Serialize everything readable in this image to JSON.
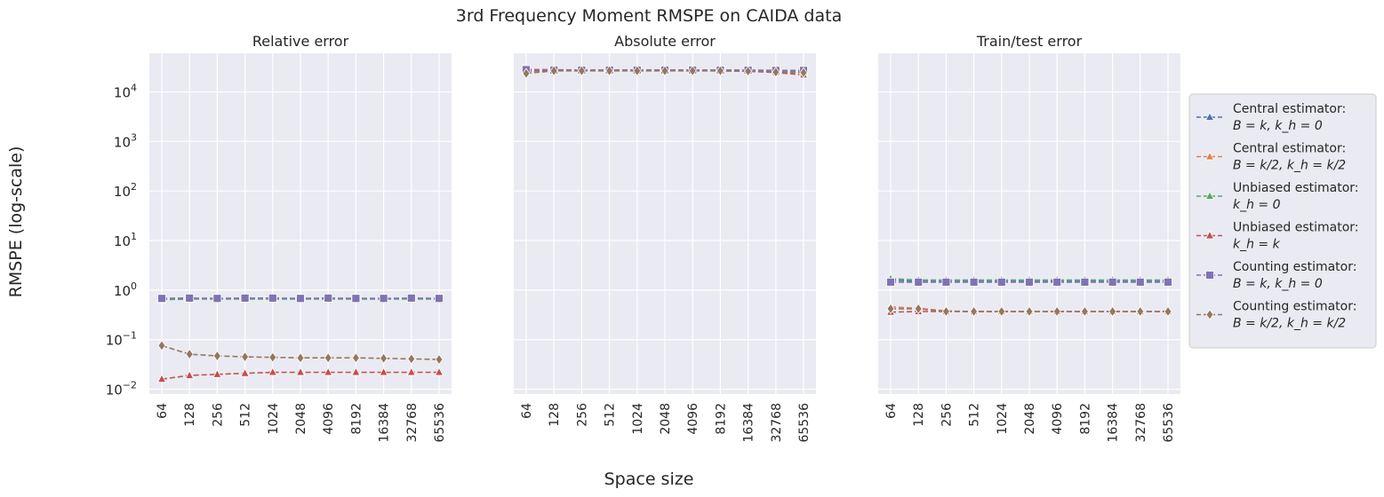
{
  "figure": {
    "suptitle": "3rd Frequency Moment RMSPE on CAIDA data",
    "ylabel": "RMSPE (log-scale)",
    "xlabel": "Space size"
  },
  "colors": {
    "background": "#eaeaf2",
    "grid": "#ffffff",
    "series": [
      "#4c72b0",
      "#dd8452",
      "#55a868",
      "#c44e52",
      "#8172b3",
      "#937860"
    ]
  },
  "legend": {
    "placement": "right",
    "entries": [
      {
        "line1": "Central estimator:",
        "line2": "B = k, k_h = 0",
        "marker": "triangle"
      },
      {
        "line1": "Central estimator:",
        "line2": "B = k/2, k_h = k/2",
        "marker": "triangle"
      },
      {
        "line1": "Unbiased estimator:",
        "line2": "k_h = 0",
        "marker": "triangle"
      },
      {
        "line1": "Unbiased estimator:",
        "line2": "k_h = k",
        "marker": "triangle"
      },
      {
        "line1": "Counting estimator:",
        "line2": "B = k, k_h = 0",
        "marker": "square"
      },
      {
        "line1": "Counting estimator:",
        "line2": "B = k/2, k_h = k/2",
        "marker": "diamond"
      }
    ]
  },
  "chart_data": [
    {
      "type": "line",
      "title": "Relative error",
      "scale": "log",
      "ylim": [
        0.008,
        60000
      ],
      "yticks": [
        "10^4",
        "10^3",
        "10^2",
        "10^1",
        "10^0",
        "10^-1",
        "10^-2"
      ],
      "categories": [
        "64",
        "128",
        "256",
        "512",
        "1024",
        "2048",
        "4096",
        "8192",
        "16384",
        "32768",
        "65536"
      ],
      "series": [
        {
          "values": [
            0.68,
            0.68,
            0.67,
            0.68,
            0.68,
            0.67,
            0.68,
            0.67,
            0.67,
            0.68,
            0.67
          ]
        },
        {
          "values": [
            0.66,
            0.67,
            0.67,
            0.67,
            0.67,
            0.67,
            0.67,
            0.67,
            0.67,
            0.67,
            0.67
          ]
        },
        {
          "values": [
            0.64,
            0.66,
            0.66,
            0.66,
            0.66,
            0.66,
            0.66,
            0.66,
            0.66,
            0.66,
            0.66
          ]
        },
        {
          "values": [
            0.016,
            0.019,
            0.02,
            0.021,
            0.022,
            0.022,
            0.022,
            0.022,
            0.022,
            0.022,
            0.022
          ]
        },
        {
          "values": [
            0.68,
            0.69,
            0.68,
            0.69,
            0.69,
            0.68,
            0.69,
            0.68,
            0.68,
            0.69,
            0.68
          ]
        },
        {
          "values": [
            0.076,
            0.051,
            0.047,
            0.045,
            0.044,
            0.043,
            0.043,
            0.043,
            0.042,
            0.041,
            0.04
          ]
        }
      ]
    },
    {
      "type": "line",
      "title": "Absolute error",
      "scale": "log",
      "ylim": [
        0.008,
        60000
      ],
      "categories": [
        "64",
        "128",
        "256",
        "512",
        "1024",
        "2048",
        "4096",
        "8192",
        "16384",
        "32768",
        "65536"
      ],
      "series": [
        {
          "values": [
            27500,
            27000,
            27000,
            27000,
            27000,
            27000,
            27000,
            27000,
            27000,
            26500,
            26000
          ]
        },
        {
          "values": [
            28500,
            28000,
            27500,
            27500,
            27500,
            27500,
            27500,
            27000,
            26500,
            25500,
            24500
          ]
        },
        {
          "values": [
            27000,
            27000,
            27000,
            27000,
            27000,
            27000,
            27000,
            27000,
            27000,
            27000,
            27000
          ]
        },
        {
          "values": [
            26000,
            27000,
            27000,
            27000,
            27000,
            27000,
            27000,
            26500,
            26000,
            24500,
            22000
          ]
        },
        {
          "values": [
            28000,
            27500,
            27500,
            27500,
            27500,
            27500,
            27500,
            27500,
            27500,
            27000,
            27000
          ]
        },
        {
          "values": [
            23500,
            26500,
            26500,
            26500,
            26500,
            26500,
            26500,
            26500,
            26000,
            25000,
            24500
          ]
        }
      ]
    },
    {
      "type": "line",
      "title": "Train/test error",
      "scale": "log",
      "ylim": [
        0.008,
        60000
      ],
      "categories": [
        "64",
        "128",
        "256",
        "512",
        "1024",
        "2048",
        "4096",
        "8192",
        "16384",
        "32768",
        "65536"
      ],
      "series": [
        {
          "values": [
            1.6,
            1.5,
            1.5,
            1.5,
            1.5,
            1.5,
            1.5,
            1.5,
            1.5,
            1.5,
            1.5
          ]
        },
        {
          "values": [
            0.46,
            0.43,
            0.38,
            0.37,
            0.37,
            0.37,
            0.37,
            0.37,
            0.37,
            0.37,
            0.37
          ]
        },
        {
          "values": [
            1.7,
            1.6,
            1.6,
            1.6,
            1.6,
            1.6,
            1.6,
            1.6,
            1.6,
            1.6,
            1.6
          ]
        },
        {
          "values": [
            0.36,
            0.37,
            0.37,
            0.37,
            0.37,
            0.37,
            0.37,
            0.37,
            0.37,
            0.37,
            0.37
          ]
        },
        {
          "values": [
            1.45,
            1.45,
            1.45,
            1.45,
            1.45,
            1.45,
            1.45,
            1.45,
            1.45,
            1.45,
            1.45
          ]
        },
        {
          "values": [
            0.42,
            0.42,
            0.37,
            0.37,
            0.37,
            0.37,
            0.37,
            0.37,
            0.37,
            0.37,
            0.37
          ]
        }
      ]
    }
  ]
}
